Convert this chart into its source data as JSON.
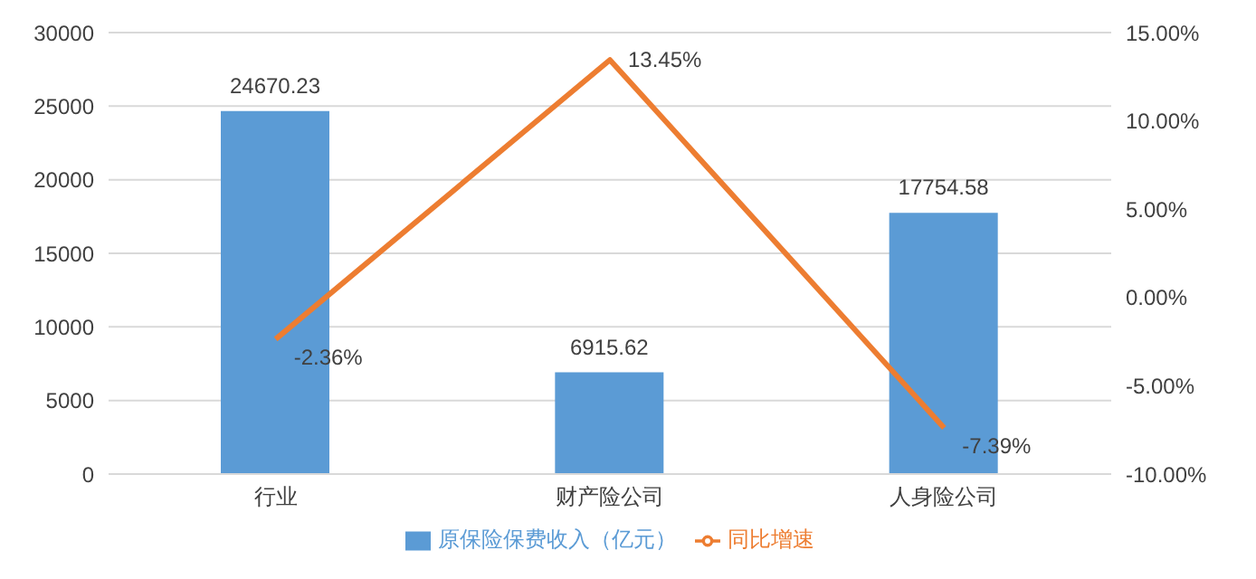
{
  "chart_data": {
    "type": "bar",
    "categories": [
      "行业",
      "财产险公司",
      "人身险公司"
    ],
    "series": [
      {
        "name": "原保险保费收入（亿元）",
        "color": "#5b9bd5",
        "values": [
          24670.23,
          6915.62,
          17754.58
        ],
        "value_labels": [
          "24670.23",
          "6915.62",
          "17754.58"
        ]
      },
      {
        "name": "同比增速",
        "type": "line",
        "axis": "y2",
        "color": "#ed7d31",
        "values": [
          -2.36,
          13.45,
          -7.39
        ],
        "value_labels": [
          "-2.36%",
          "13.45%",
          "-7.39%"
        ]
      }
    ],
    "ylim": [
      0,
      30000
    ],
    "yticks": [
      0,
      5000,
      10000,
      15000,
      20000,
      25000,
      30000
    ],
    "y2lim": [
      -10,
      15
    ],
    "y2ticks": [
      {
        "value": -10,
        "label": "-10.00%"
      },
      {
        "value": -5,
        "label": "-5.00%"
      },
      {
        "value": 0,
        "label": "0.00%"
      },
      {
        "value": 5,
        "label": "5.00%"
      },
      {
        "value": 10,
        "label": "10.00%"
      },
      {
        "value": 15,
        "label": "15.00%"
      }
    ],
    "grid": "y",
    "legend": "bottom",
    "marker": "none",
    "line_style": "solid"
  }
}
